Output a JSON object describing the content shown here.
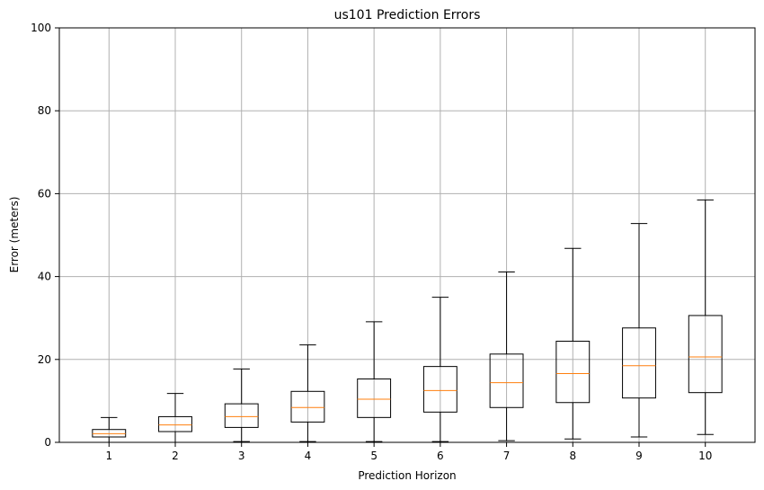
{
  "chart_data": {
    "type": "box",
    "title": "us101 Prediction Errors",
    "xlabel": "Prediction Horizon",
    "ylabel": "Error (meters)",
    "ylim": [
      0,
      100
    ],
    "yticks": [
      0,
      20,
      40,
      60,
      80,
      100
    ],
    "grid": true,
    "categories": [
      "1",
      "2",
      "3",
      "4",
      "5",
      "6",
      "7",
      "8",
      "9",
      "10"
    ],
    "boxes": [
      {
        "category": "1",
        "whisker_low": 0.0,
        "q1": 1.3,
        "median": 2.1,
        "q3": 3.1,
        "whisker_high": 6.0
      },
      {
        "category": "2",
        "whisker_low": 0.0,
        "q1": 2.6,
        "median": 4.2,
        "q3": 6.2,
        "whisker_high": 11.8
      },
      {
        "category": "3",
        "whisker_low": 0.2,
        "q1": 3.6,
        "median": 6.2,
        "q3": 9.3,
        "whisker_high": 17.7
      },
      {
        "category": "4",
        "whisker_low": 0.2,
        "q1": 4.9,
        "median": 8.4,
        "q3": 12.3,
        "whisker_high": 23.5
      },
      {
        "category": "5",
        "whisker_low": 0.2,
        "q1": 6.0,
        "median": 10.4,
        "q3": 15.3,
        "whisker_high": 29.1
      },
      {
        "category": "6",
        "whisker_low": 0.2,
        "q1": 7.3,
        "median": 12.5,
        "q3": 18.3,
        "whisker_high": 35.0
      },
      {
        "category": "7",
        "whisker_low": 0.4,
        "q1": 8.4,
        "median": 14.4,
        "q3": 21.3,
        "whisker_high": 41.1
      },
      {
        "category": "8",
        "whisker_low": 0.8,
        "q1": 9.6,
        "median": 16.6,
        "q3": 24.4,
        "whisker_high": 46.8
      },
      {
        "category": "9",
        "whisker_low": 1.3,
        "q1": 10.7,
        "median": 18.5,
        "q3": 27.6,
        "whisker_high": 52.8
      },
      {
        "category": "10",
        "whisker_low": 1.9,
        "q1": 12.0,
        "median": 20.6,
        "q3": 30.6,
        "whisker_high": 58.5
      }
    ],
    "colors": {
      "box": "#000000",
      "median": "#ff7f0e",
      "grid": "#b0b0b0"
    }
  }
}
